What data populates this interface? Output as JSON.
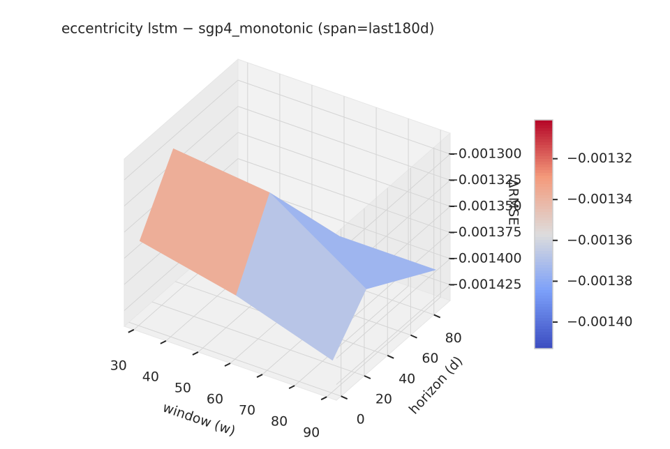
{
  "chart_data": {
    "type": "surface3d",
    "title": "eccentricity  lstm − sgp4_monotonic  (span=last180d)",
    "xlabel": "window (w)",
    "ylabel": "horizon (d)",
    "zlabel": "ΔRMSE",
    "x": [
      30,
      60,
      90
    ],
    "y": [
      1,
      30,
      90
    ],
    "z": [
      [
        -0.00136,
        -0.00138,
        -0.00141
      ],
      [
        -0.0013,
        -0.00131,
        -0.00137
      ],
      [
        -0.00139,
        -0.00141,
        -0.00141
      ]
    ],
    "xlim": [
      27,
      93
    ],
    "ylim": [
      -4,
      94
    ],
    "zlim": [
      -0.00144,
      -0.00128
    ],
    "xticks": [
      30,
      40,
      50,
      60,
      70,
      80,
      90
    ],
    "yticks": [
      0,
      20,
      40,
      60,
      80
    ],
    "zticks": [
      {
        "value": -0.0013,
        "label": "−0.001300"
      },
      {
        "value": -0.001325,
        "label": "−0.001325"
      },
      {
        "value": -0.00135,
        "label": "−0.001350"
      },
      {
        "value": -0.001375,
        "label": "−0.001375"
      },
      {
        "value": -0.0014,
        "label": "−0.001400"
      },
      {
        "value": -0.001425,
        "label": "−0.001425"
      }
    ],
    "colormap": [
      "#3b4cc0",
      "#7b9ff9",
      "#dddcdc",
      "#f49a7b",
      "#b40426"
    ],
    "clim": [
      -0.001413,
      -0.001301
    ],
    "colorbar_ticks": [
      {
        "value": -0.00132,
        "label": "−0.00132"
      },
      {
        "value": -0.00134,
        "label": "−0.00134"
      },
      {
        "value": -0.00136,
        "label": "−0.00136"
      },
      {
        "value": -0.00138,
        "label": "−0.00138"
      },
      {
        "value": -0.0014,
        "label": "−0.00140"
      }
    ],
    "grid": true
  }
}
